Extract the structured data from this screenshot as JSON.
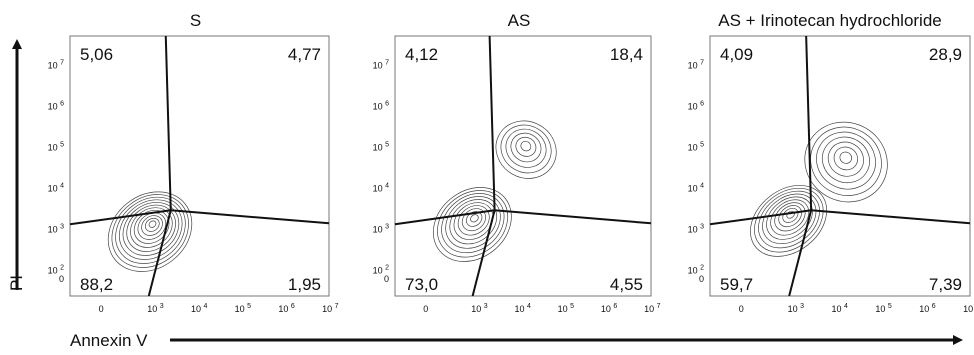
{
  "chart_data": [
    {
      "type": "contour",
      "title": "S",
      "quadrants": {
        "upper_left": "5,06",
        "upper_right": "4,77",
        "lower_left": "88,2",
        "lower_right": "1,95"
      },
      "population": {
        "center": [
          500,
          600
        ],
        "spread": [
          0.32,
          0.26
        ],
        "levels": 12
      }
    },
    {
      "type": "contour",
      "title": "AS",
      "quadrants": {
        "upper_left": "4,12",
        "upper_right": "18,4",
        "lower_left": "73,0",
        "lower_right": "4,55"
      },
      "population": {
        "center": [
          400,
          900
        ],
        "spread": [
          0.3,
          0.24
        ],
        "levels": 10
      },
      "secondary_population": {
        "center": [
          12000,
          60000
        ],
        "spread": [
          0.2,
          0.22
        ],
        "levels": 6
      }
    },
    {
      "type": "contour",
      "title": "AS + Irinotecan hydrochloride",
      "quadrants": {
        "upper_left": "4,09",
        "upper_right": "28,9",
        "lower_left": "59,7",
        "lower_right": "7,39"
      },
      "population": {
        "center": [
          400,
          1100
        ],
        "spread": [
          0.3,
          0.22
        ],
        "levels": 10
      },
      "secondary_population": {
        "center": [
          14000,
          30000
        ],
        "spread": [
          0.28,
          0.3
        ],
        "levels": 7
      }
    }
  ],
  "axes": {
    "x_ticks": [
      "0",
      "10 3",
      "10 4",
      "10 5",
      "10 6",
      "10 7"
    ],
    "y_ticks": [
      "10 7",
      "10 6",
      "10 5",
      "10 4",
      "10 3",
      "10 2",
      "0"
    ],
    "xlabel": "Annexin V",
    "ylabel": "PI",
    "scale": "biexponential"
  },
  "colors": {
    "lines": "#111111",
    "contours": "#444444"
  }
}
